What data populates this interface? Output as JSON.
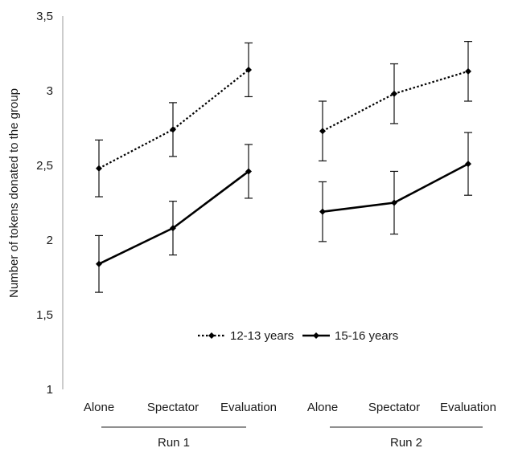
{
  "chart_data": {
    "type": "line",
    "title": "",
    "ylabel": "Number of tokens donated to the group",
    "ylim": [
      1,
      3.5
    ],
    "yticks": [
      "1",
      "1,5",
      "2",
      "2,5",
      "3",
      "3,5"
    ],
    "ytick_values": [
      1,
      1.5,
      2,
      2.5,
      3,
      3.5
    ],
    "grid": false,
    "legend_position": "inside-lower-center",
    "groups": [
      {
        "label": "Run 1",
        "categories": [
          "Alone",
          "Spectator",
          "Evaluation"
        ]
      },
      {
        "label": "Run 2",
        "categories": [
          "Alone",
          "Spectator",
          "Evaluation"
        ]
      }
    ],
    "series": [
      {
        "name": "12-13 years",
        "style": "dotted",
        "color": "#000000",
        "values": [
          [
            2.48,
            2.74,
            3.14
          ],
          [
            2.73,
            2.98,
            3.13
          ]
        ],
        "error": [
          [
            0.19,
            0.18,
            0.18
          ],
          [
            0.2,
            0.2,
            0.2
          ]
        ]
      },
      {
        "name": "15-16 years",
        "style": "solid",
        "color": "#000000",
        "values": [
          [
            1.84,
            2.08,
            2.46
          ],
          [
            2.19,
            2.25,
            2.51
          ]
        ],
        "error": [
          [
            0.19,
            0.18,
            0.18
          ],
          [
            0.2,
            0.21,
            0.21
          ]
        ]
      }
    ]
  }
}
